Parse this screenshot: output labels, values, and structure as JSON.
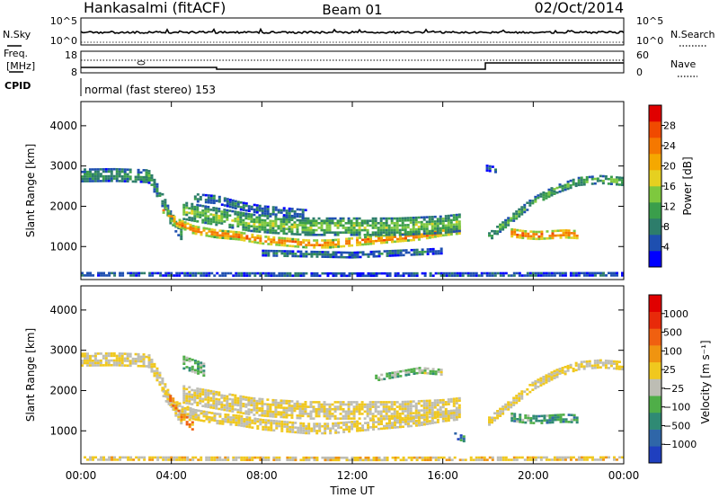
{
  "header": {
    "station": "Hankasalmi (fitACF)",
    "beam": "Beam 01",
    "date": "02/Oct/2014"
  },
  "strip_panels": {
    "nsky_label": "N.Sky",
    "nsky_ticks": [
      "10^5",
      "10^0"
    ],
    "nsearch_label": "N.Search",
    "nsearch_ticks": [
      "10^5",
      "10^0"
    ],
    "freq_label_1": "Freq.",
    "freq_label_2": "[MHz]",
    "freq_ticks": [
      "18",
      "8"
    ],
    "nave_label": "Nave",
    "nave_ticks": [
      "60",
      "0"
    ],
    "cpid_label": "CPID",
    "cpid_text": "normal (fast stereo) 153"
  },
  "x_axis": {
    "title": "Time UT",
    "ticks": [
      "00:00",
      "04:00",
      "08:00",
      "12:00",
      "16:00",
      "20:00",
      "00:00"
    ],
    "range_hours": [
      0,
      24
    ]
  },
  "colorbars": {
    "power": {
      "title": "Power [dB]",
      "tick_labels": [
        "28",
        "24",
        "20",
        "16",
        "12",
        "8",
        "4"
      ],
      "colors": [
        "#0000ff",
        "#1e4fb0",
        "#2d7d6b",
        "#3a9e4b",
        "#7ec83e",
        "#e6d020",
        "#f5a800",
        "#f57800",
        "#f04a00",
        "#e00000"
      ]
    },
    "velocity": {
      "title": "Velocity [m s⁻¹]",
      "tick_labels": [
        "1000",
        "500",
        "100",
        "25",
        "−25",
        "−100",
        "−500",
        "−1000"
      ],
      "colors": [
        "#1f3fbf",
        "#2f66a8",
        "#2f8a74",
        "#4fae48",
        "#bdbdb4",
        "#f0c81e",
        "#f09410",
        "#f06010",
        "#e82a0a",
        "#e00000"
      ]
    }
  },
  "chart_data": [
    {
      "type": "heatmap",
      "quantity": "Power",
      "ylabel": "Slant Range [km]",
      "xlabel": "Time UT",
      "yticks": [
        "1000",
        "2000",
        "3000",
        "4000"
      ],
      "ylim": [
        180,
        4600
      ],
      "xlim_hours": [
        0,
        24
      ],
      "zlim": [
        0,
        30
      ],
      "bands": [
        {
          "t": [
            0.0,
            1.5,
            3.0,
            3.5,
            4.0,
            4.5
          ],
          "r": [
            2780,
            2790,
            2760,
            2300,
            1700,
            1300
          ],
          "w": 320,
          "z": 10
        },
        {
          "t": [
            3.6,
            4.2,
            5.0,
            6.0,
            7.0,
            8.0,
            9.0,
            10.0,
            11.0,
            12.0,
            13.0,
            14.0,
            15.0,
            16.0,
            16.8
          ],
          "r": [
            1950,
            1600,
            1400,
            1300,
            1250,
            1150,
            1100,
            1050,
            1050,
            1100,
            1150,
            1200,
            1250,
            1350,
            1400
          ],
          "w": 260,
          "z": 25
        },
        {
          "t": [
            4.5,
            5.5,
            6.5,
            7.5,
            8.5,
            10.0,
            12.0,
            14.0,
            16.0,
            16.8
          ],
          "r": [
            1900,
            1800,
            1700,
            1600,
            1550,
            1500,
            1500,
            1500,
            1550,
            1600
          ],
          "w": 450,
          "z": 14
        },
        {
          "t": [
            5.0,
            6.0,
            7.0,
            8.0,
            9.0,
            10.0
          ],
          "r": [
            2200,
            2150,
            2000,
            1900,
            1850,
            1800
          ],
          "w": 260,
          "z": 8
        },
        {
          "t": [
            18.0,
            19.0,
            20.0,
            21.0,
            22.0,
            23.0,
            24.0
          ],
          "r": [
            1200,
            1650,
            2100,
            2400,
            2600,
            2650,
            2600
          ],
          "w": 260,
          "z": 12
        },
        {
          "t": [
            17.9,
            18.4
          ],
          "r": [
            2950,
            2900
          ],
          "w": 180,
          "z": 6
        },
        {
          "t": [
            8.0,
            12.0,
            16.0
          ],
          "r": [
            850,
            800,
            900
          ],
          "w": 150,
          "z": 7
        },
        {
          "t": [
            0.0,
            12.0,
            24.0
          ],
          "r": [
            300,
            290,
            300
          ],
          "w": 140,
          "z": 6
        },
        {
          "t": [
            19.0,
            19.6,
            20.2,
            20.8,
            21.4,
            22.0
          ],
          "r": [
            1350,
            1300,
            1280,
            1300,
            1320,
            1300
          ],
          "w": 220,
          "z": 26
        }
      ]
    },
    {
      "type": "heatmap",
      "quantity": "Velocity",
      "ylabel": "Slant Range [km]",
      "xlabel": "Time UT",
      "yticks": [
        "1000",
        "2000",
        "3000",
        "4000"
      ],
      "ylim": [
        180,
        4600
      ],
      "xlim_hours": [
        0,
        24
      ],
      "zlim": [
        -1000,
        1000
      ],
      "bands": [
        {
          "t": [
            0.0,
            1.5,
            3.0,
            3.5,
            4.0,
            4.5
          ],
          "r": [
            2780,
            2790,
            2760,
            2300,
            1700,
            1300
          ],
          "w": 320,
          "z": 0
        },
        {
          "t": [
            3.6,
            4.2,
            5.0,
            6.0,
            7.0,
            8.0,
            9.0,
            10.0,
            11.0,
            12.0,
            13.0,
            14.0,
            15.0,
            16.0,
            16.8
          ],
          "r": [
            1950,
            1600,
            1400,
            1300,
            1250,
            1150,
            1100,
            1050,
            1050,
            1100,
            1150,
            1200,
            1250,
            1350,
            1400
          ],
          "w": 300,
          "z": 0
        },
        {
          "t": [
            4.5,
            5.5,
            6.5,
            7.5,
            8.5,
            10.0,
            12.0,
            14.0,
            16.0,
            16.8
          ],
          "r": [
            1900,
            1800,
            1700,
            1600,
            1550,
            1500,
            1500,
            1500,
            1550,
            1600
          ],
          "w": 480,
          "z": 0
        },
        {
          "t": [
            18.0,
            19.0,
            20.0,
            21.0,
            22.0,
            23.0,
            24.0
          ],
          "r": [
            1200,
            1650,
            2100,
            2400,
            2600,
            2650,
            2600
          ],
          "w": 260,
          "z": 0
        },
        {
          "t": [
            3.9,
            4.4,
            5.0
          ],
          "r": [
            1900,
            1400,
            1100
          ],
          "w": 220,
          "z": 300
        },
        {
          "t": [
            4.5,
            5.0,
            5.5
          ],
          "r": [
            2700,
            2600,
            2500
          ],
          "w": 360,
          "z": -300
        },
        {
          "t": [
            13.0,
            14.0,
            15.0,
            16.0
          ],
          "r": [
            2300,
            2400,
            2500,
            2450
          ],
          "w": 180,
          "z": -200
        },
        {
          "t": [
            19.0,
            19.6,
            20.2,
            20.8,
            21.4,
            22.0
          ],
          "r": [
            1350,
            1300,
            1280,
            1300,
            1320,
            1300
          ],
          "w": 220,
          "z": -400
        },
        {
          "t": [
            16.5,
            17.0
          ],
          "r": [
            900,
            800
          ],
          "w": 150,
          "z": -600
        },
        {
          "t": [
            0.0,
            12.0,
            24.0
          ],
          "r": [
            300,
            290,
            300
          ],
          "w": 140,
          "z": 60
        }
      ]
    }
  ]
}
